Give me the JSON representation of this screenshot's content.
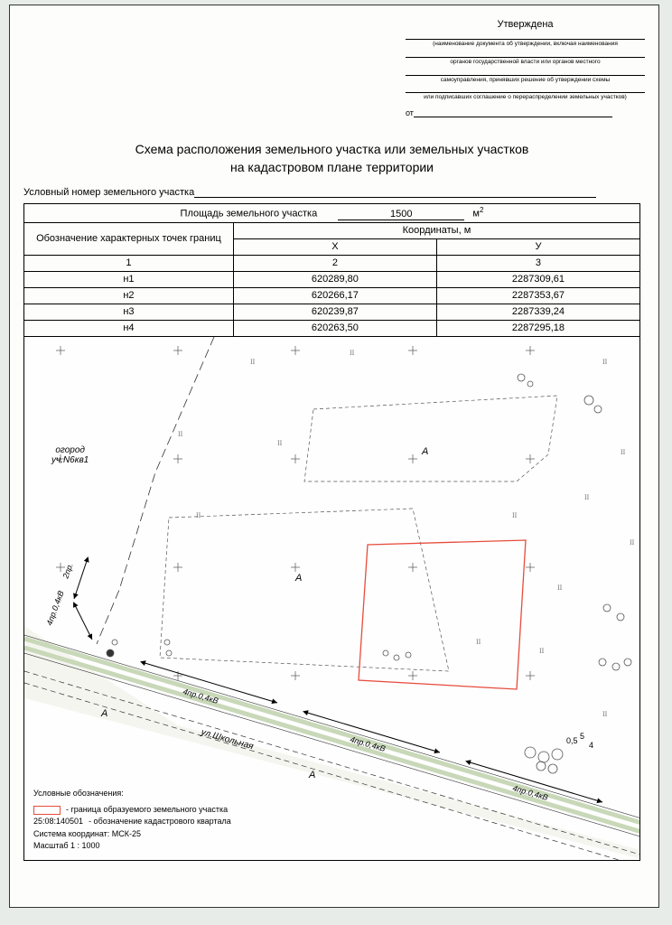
{
  "approval": {
    "heading": "Утверждена",
    "line1": "(наименование документа об утверждении, включая наименования",
    "line2": "органов государственной власти или органов местного",
    "line3": "самоуправления, принявших решение об утверждении схемы",
    "line4": "или подписавших соглашение о перераспределении земельных участков)",
    "from_label": "от"
  },
  "title": {
    "l1": "Схема расположения земельного участка или земельных участков",
    "l2": "на кадастровом плане территории"
  },
  "cond_label": "Условный номер земельного участка",
  "area": {
    "label": "Площадь земельного участка",
    "value": "1500",
    "unit_base": "м",
    "unit_sup": "2"
  },
  "table": {
    "h1": "Обозначение характерных точек границ",
    "h2": "Координаты, м",
    "x": "X",
    "y": "У",
    "c1": "1",
    "c2": "2",
    "c3": "3",
    "rows": [
      {
        "pt": "н1",
        "x": "620289,80",
        "y": "2287309,61"
      },
      {
        "pt": "н2",
        "x": "620266,17",
        "y": "2287353,67"
      },
      {
        "pt": "н3",
        "x": "620239,87",
        "y": "2287339,24"
      },
      {
        "pt": "н4",
        "x": "620263,50",
        "y": "2287295,18"
      }
    ]
  },
  "map": {
    "garden_label": "огород\nуч.N6кв1",
    "letter_A": "А",
    "street": "ул.Школьная",
    "power_label": "4пр.0,4кВ",
    "power_label2": "2пр.",
    "tree_labels": [
      "0,5",
      "5",
      "4"
    ],
    "colors": {
      "red": "#e74c3c",
      "green_road": "#c8d8b8",
      "grid_cross": "#555",
      "tree": "#555",
      "dash": "#333"
    }
  },
  "legend": {
    "title": "Условные обозначения:",
    "item1": "- граница образуемого земельного участка",
    "item2_code": "25:08:140501",
    "item2": "- обозначение кадастрового квартала",
    "coord_sys": "Система координат: МСК-25",
    "scale": "Масштаб 1 : 1000"
  }
}
